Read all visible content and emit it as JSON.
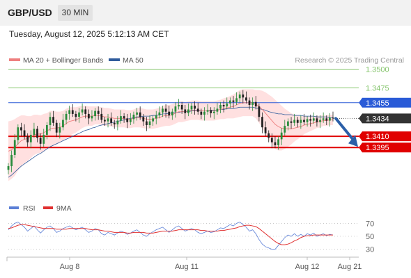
{
  "header": {
    "symbol": "GBP/USD",
    "timeframe": "30 MIN"
  },
  "timestamp": "Tuesday, August 12, 2025 5:12:13 AM CET",
  "colors": {
    "up": "#2a8c3c",
    "down": "#222222",
    "ma20": "#ee7f7f",
    "band_fill": "#ffd5d5",
    "ma50": "#4a6fb5",
    "resistance_green": "#84c46b",
    "pivot_blue": "#2a5bd7",
    "support_red": "#e00000",
    "rsi": "#5b7fd6",
    "rsi_ma": "#e03030",
    "arrow": "#2b5fa8"
  },
  "chart_data": [
    {
      "type": "candlestick",
      "instrument": "GBP/USD",
      "timeframe": "30 MIN",
      "legend": [
        {
          "label": "MA 20 + Bollinger Bands",
          "color": "#ee7f7f"
        },
        {
          "label": "MA 50",
          "color": "#2f5b9c"
        }
      ],
      "watermark": "Research © 2025 Trading Central",
      "ylim": [
        1.333,
        1.352
      ],
      "x_tick_labels": [
        "Aug 8",
        "Aug 11",
        "Aug 12",
        "Aug 21"
      ],
      "current_price": 1.3434,
      "levels": [
        {
          "label": "1.3500",
          "value": 1.35,
          "kind": "resistance"
        },
        {
          "label": "1.3475",
          "value": 1.3475,
          "kind": "resistance"
        },
        {
          "label": "1.3455",
          "value": 1.3455,
          "kind": "pivot"
        },
        {
          "label": "1.3434",
          "value": 1.3434,
          "kind": "last"
        },
        {
          "label": "1.3410",
          "value": 1.341,
          "kind": "support"
        },
        {
          "label": "1.3395",
          "value": 1.3395,
          "kind": "support"
        }
      ],
      "close_series": [
        1.337,
        1.3385,
        1.3405,
        1.3422,
        1.3418,
        1.341,
        1.3402,
        1.3412,
        1.342,
        1.3408,
        1.34,
        1.3412,
        1.3425,
        1.3436,
        1.3428,
        1.3415,
        1.3422,
        1.3432,
        1.344,
        1.3445,
        1.344,
        1.3436,
        1.3442,
        1.3446,
        1.344,
        1.3434,
        1.3437,
        1.3444,
        1.344,
        1.3432,
        1.343,
        1.3434,
        1.3428,
        1.3426,
        1.3431,
        1.3437,
        1.3434,
        1.3429,
        1.3433,
        1.3439,
        1.3442,
        1.3436,
        1.343,
        1.3425,
        1.343,
        1.3434,
        1.3438,
        1.3442,
        1.3447,
        1.3443,
        1.3438,
        1.3443,
        1.345,
        1.3452,
        1.3446,
        1.3441,
        1.3446,
        1.3451,
        1.3447,
        1.3443,
        1.3439,
        1.3443,
        1.3445,
        1.3441,
        1.3443,
        1.3447,
        1.3452,
        1.345,
        1.3454,
        1.3458,
        1.3456,
        1.3461,
        1.3466,
        1.3462,
        1.3458,
        1.3452,
        1.3456,
        1.345,
        1.3436,
        1.3422,
        1.3414,
        1.3408,
        1.3402,
        1.3398,
        1.3406,
        1.3415,
        1.3424,
        1.343,
        1.3428,
        1.3432,
        1.3428,
        1.3432,
        1.3429,
        1.3433,
        1.3431,
        1.3434,
        1.3429,
        1.3432,
        1.3434,
        1.3431,
        1.3435,
        1.3434
      ],
      "ma20_series": [
        1.339,
        1.3392,
        1.3395,
        1.34,
        1.3404,
        1.3406,
        1.3407,
        1.3409,
        1.3412,
        1.3413,
        1.3413,
        1.3415,
        1.3417,
        1.342,
        1.3421,
        1.3421,
        1.3422,
        1.3424,
        1.3427,
        1.343,
        1.3431,
        1.3432,
        1.3434,
        1.3436,
        1.3437,
        1.3437,
        1.3437,
        1.3438,
        1.3438,
        1.3437,
        1.3436,
        1.3436,
        1.3435,
        1.3434,
        1.3434,
        1.3434,
        1.3434,
        1.3433,
        1.3433,
        1.3434,
        1.3435,
        1.3435,
        1.3434,
        1.3433,
        1.3433,
        1.3433,
        1.3434,
        1.3435,
        1.3437,
        1.3438,
        1.3438,
        1.3439,
        1.3441,
        1.3443,
        1.3443,
        1.3443,
        1.3444,
        1.3445,
        1.3445,
        1.3445,
        1.3444,
        1.3444,
        1.3444,
        1.3444,
        1.3444,
        1.3445,
        1.3446,
        1.3447,
        1.3448,
        1.3449,
        1.345,
        1.3452,
        1.3454,
        1.3455,
        1.3455,
        1.3455,
        1.3455,
        1.3453,
        1.345,
        1.3446,
        1.3441,
        1.3436,
        1.3431,
        1.3426,
        1.3423,
        1.3421,
        1.342,
        1.342,
        1.342,
        1.3421,
        1.3422,
        1.3423,
        1.3425,
        1.3426,
        1.3427,
        1.3428,
        1.3429,
        1.343,
        1.3431,
        1.3431,
        1.3432,
        1.3432
      ],
      "ma50_series": [
        1.3355,
        1.3358,
        1.3362,
        1.3366,
        1.337,
        1.3373,
        1.3376,
        1.3379,
        1.3382,
        1.3385,
        1.3387,
        1.339,
        1.3393,
        1.3396,
        1.3398,
        1.34,
        1.3402,
        1.3404,
        1.3406,
        1.3408,
        1.341,
        1.3412,
        1.3414,
        1.3416,
        1.3418,
        1.3419,
        1.3421,
        1.3422,
        1.3424,
        1.3425,
        1.3426,
        1.3427,
        1.3428,
        1.3429,
        1.343,
        1.3431,
        1.3432,
        1.3433,
        1.3434,
        1.3435,
        1.3436,
        1.3436,
        1.3437,
        1.3437,
        1.3437,
        1.3438,
        1.3438,
        1.3439,
        1.344,
        1.344,
        1.3441,
        1.3441,
        1.3442,
        1.3442,
        1.3443,
        1.3443,
        1.3443,
        1.3444,
        1.3444,
        1.3444,
        1.3444,
        1.3444,
        1.3444,
        1.3445,
        1.3445,
        1.3445,
        1.3446,
        1.3446,
        1.3447,
        1.3447,
        1.3447,
        1.3448,
        1.3449,
        1.3449,
        1.3449,
        1.3449,
        1.3449,
        1.3448,
        1.3447,
        1.3446,
        1.3445,
        1.3443,
        1.3442,
        1.3441,
        1.344,
        1.344,
        1.3439,
        1.3439,
        1.3439,
        1.3438,
        1.3438,
        1.3438,
        1.3437,
        1.3437,
        1.3437,
        1.3437,
        1.3436,
        1.3436,
        1.3436,
        1.3436,
        1.3435,
        1.3435
      ],
      "band_width_series": [
        0.004,
        0.0039,
        0.0038,
        0.0036,
        0.0034,
        0.0032,
        0.003,
        0.0028,
        0.0027,
        0.0026,
        0.0025,
        0.0025,
        0.0024,
        0.0024,
        0.0023,
        0.0022,
        0.0021,
        0.002,
        0.002,
        0.0019,
        0.0018,
        0.0017,
        0.0016,
        0.0015,
        0.0014,
        0.0013,
        0.0013,
        0.0012,
        0.0012,
        0.0012,
        0.0012,
        0.0012,
        0.0012,
        0.0012,
        0.0012,
        0.0012,
        0.0012,
        0.0012,
        0.0012,
        0.0012,
        0.0013,
        0.0013,
        0.0013,
        0.0013,
        0.0013,
        0.0013,
        0.0013,
        0.0013,
        0.0014,
        0.0014,
        0.0014,
        0.0014,
        0.0014,
        0.0014,
        0.0014,
        0.0013,
        0.0013,
        0.0013,
        0.0013,
        0.0013,
        0.0013,
        0.0013,
        0.0013,
        0.0013,
        0.0013,
        0.0013,
        0.0013,
        0.0014,
        0.0014,
        0.0015,
        0.0016,
        0.0017,
        0.0018,
        0.0018,
        0.0018,
        0.0018,
        0.0018,
        0.0019,
        0.0022,
        0.0025,
        0.0028,
        0.003,
        0.0032,
        0.0033,
        0.0032,
        0.003,
        0.0027,
        0.0024,
        0.0021,
        0.0018,
        0.0016,
        0.0014,
        0.0012,
        0.0011,
        0.001,
        0.0009,
        0.0008,
        0.0008,
        0.0007,
        0.0007,
        0.0007,
        0.0007
      ],
      "forecast_arrow": {
        "from": 1.3434,
        "to": 1.3395
      }
    },
    {
      "type": "line",
      "name": "RSI",
      "legend": [
        {
          "label": "RSI",
          "color": "#5b7fd6"
        },
        {
          "label": "9MA",
          "color": "#e03030"
        }
      ],
      "ylim": [
        20,
        80
      ],
      "y_tick_labels": [
        "70",
        "50",
        "30"
      ],
      "y_ticks": [
        70,
        50,
        30
      ],
      "rsi_series": [
        60,
        66,
        70,
        72,
        68,
        64,
        58,
        62,
        66,
        60,
        55,
        60,
        64,
        66,
        62,
        56,
        58,
        62,
        64,
        66,
        63,
        60,
        62,
        64,
        60,
        56,
        58,
        62,
        60,
        54,
        52,
        56,
        54,
        52,
        55,
        58,
        56,
        53,
        55,
        58,
        60,
        56,
        52,
        50,
        54,
        57,
        60,
        62,
        64,
        60,
        56,
        60,
        64,
        66,
        62,
        58,
        60,
        62,
        60,
        56,
        54,
        56,
        58,
        56,
        57,
        60,
        63,
        62,
        65,
        68,
        66,
        70,
        72,
        68,
        64,
        58,
        60,
        54,
        45,
        38,
        34,
        32,
        30,
        30,
        36,
        42,
        48,
        52,
        50,
        54,
        50,
        53,
        50,
        54,
        52,
        55,
        50,
        52,
        54,
        51,
        53,
        52
      ],
      "rsi_ma_series": [
        62,
        63,
        65,
        67,
        68,
        68,
        67,
        66,
        65,
        64,
        63,
        62,
        62,
        62,
        62,
        61,
        61,
        61,
        61,
        62,
        62,
        62,
        62,
        62,
        62,
        61,
        60,
        60,
        60,
        59,
        58,
        58,
        57,
        56,
        56,
        56,
        56,
        55,
        55,
        56,
        56,
        56,
        56,
        55,
        55,
        55,
        56,
        57,
        58,
        58,
        58,
        58,
        59,
        60,
        60,
        60,
        60,
        60,
        60,
        60,
        59,
        59,
        58,
        58,
        58,
        58,
        59,
        59,
        60,
        61,
        62,
        63,
        65,
        66,
        67,
        67,
        66,
        65,
        62,
        58,
        54,
        50,
        46,
        42,
        39,
        37,
        37,
        38,
        40,
        43,
        45,
        48,
        50,
        51,
        51,
        52,
        52,
        52,
        52,
        52,
        52,
        52
      ]
    }
  ]
}
